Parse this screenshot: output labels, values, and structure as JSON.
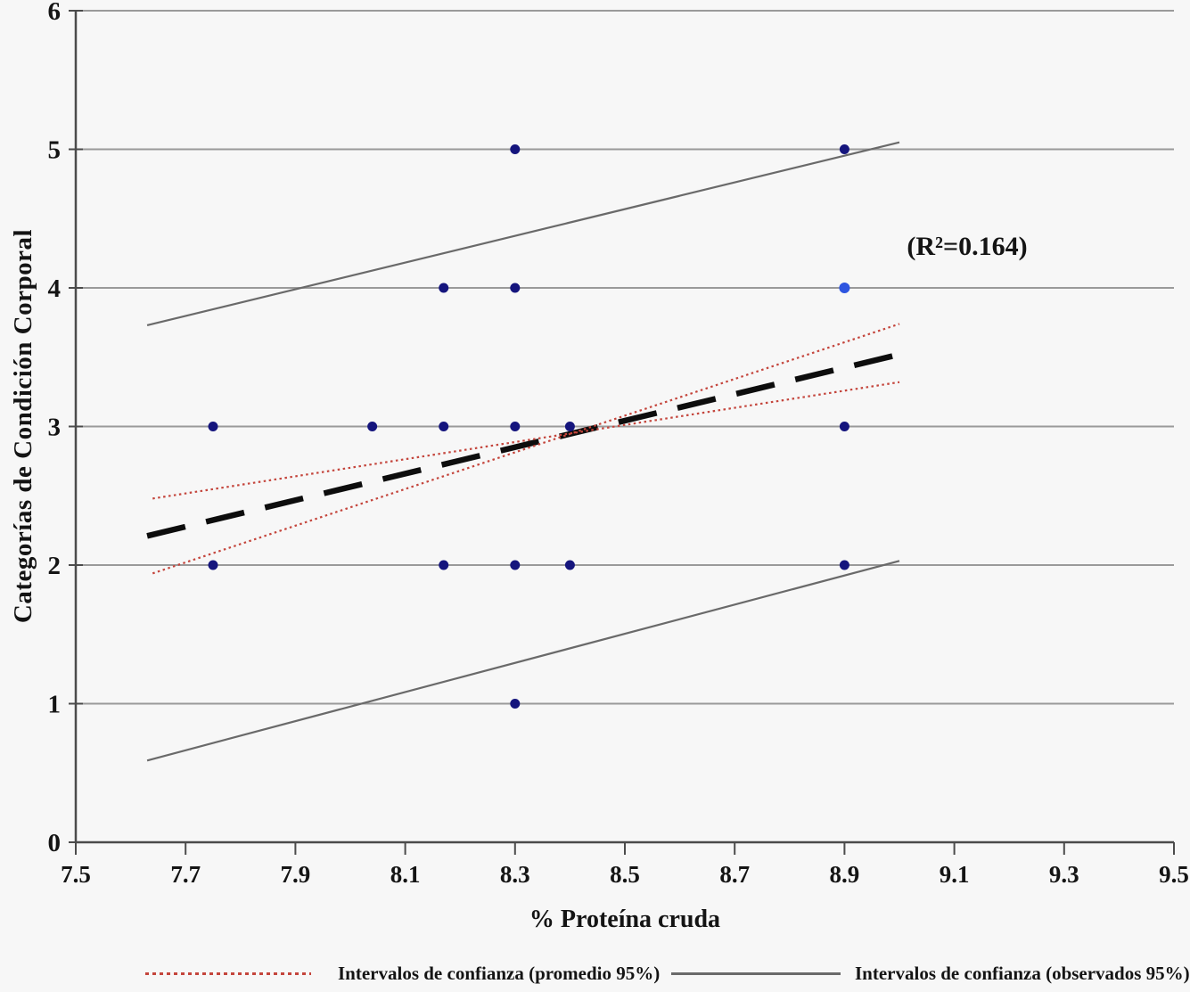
{
  "figure": {
    "background": "#f7f7f7"
  },
  "chart_data": {
    "type": "scatter",
    "title": "",
    "xlabel": "% Proteína cruda",
    "ylabel": "Categorías de Condición Corporal",
    "annotation": "(R²=0.164)",
    "xlim": [
      7.5,
      9.5
    ],
    "ylim": [
      0,
      6
    ],
    "xticks": [
      "7.5",
      "7.7",
      "7.9",
      "8.1",
      "8.3",
      "8.5",
      "8.7",
      "8.9",
      "9.1",
      "9.3",
      "9.5"
    ],
    "yticks": [
      "0",
      "1",
      "2",
      "3",
      "4",
      "5",
      "6"
    ],
    "grid": "horizontal",
    "grid_color": "#9a9a9a",
    "axis_color": "#4b4b4b",
    "point_color": "#15157d",
    "points": [
      {
        "x": 8.3,
        "y": 5
      },
      {
        "x": 8.9,
        "y": 5
      },
      {
        "x": 8.17,
        "y": 4
      },
      {
        "x": 8.3,
        "y": 4
      },
      {
        "x": 7.75,
        "y": 3
      },
      {
        "x": 8.04,
        "y": 3
      },
      {
        "x": 8.17,
        "y": 3
      },
      {
        "x": 8.3,
        "y": 3
      },
      {
        "x": 8.4,
        "y": 3
      },
      {
        "x": 8.9,
        "y": 3
      },
      {
        "x": 7.75,
        "y": 2
      },
      {
        "x": 8.17,
        "y": 2
      },
      {
        "x": 8.3,
        "y": 2
      },
      {
        "x": 8.4,
        "y": 2
      },
      {
        "x": 8.9,
        "y": 2
      },
      {
        "x": 8.3,
        "y": 1
      }
    ],
    "highlight_point": {
      "x": 8.9,
      "y": 4,
      "color": "#2e55e0"
    },
    "series_lines": [
      {
        "name": "regression-dashed",
        "style": "dashed",
        "color": "#0d0d0d",
        "width": 6.5,
        "x1": 7.63,
        "y1": 2.21,
        "x2": 9.0,
        "y2": 3.52
      },
      {
        "name": "ci-promedio-line-a",
        "style": "dotted",
        "color": "#c4453c",
        "width": 2.2,
        "x1": 7.64,
        "y1": 2.48,
        "x2": 9.0,
        "y2": 3.32
      },
      {
        "name": "ci-promedio-line-b",
        "style": "dotted",
        "color": "#c4453c",
        "width": 2.2,
        "x1": 7.64,
        "y1": 1.94,
        "x2": 9.0,
        "y2": 3.74
      },
      {
        "name": "ci-observados-superior",
        "style": "solid",
        "color": "#6a6a6a",
        "width": 2.2,
        "x1": 7.63,
        "y1": 3.73,
        "x2": 9.0,
        "y2": 5.05
      },
      {
        "name": "ci-observados-inferior",
        "style": "solid",
        "color": "#6a6a6a",
        "width": 2.2,
        "x1": 7.63,
        "y1": 0.59,
        "x2": 9.0,
        "y2": 2.03
      }
    ],
    "legend": [
      {
        "label": "Intervalos de confianza (promedio 95%)",
        "style": "dotted",
        "color": "#c4453c"
      },
      {
        "label": "Intervalos de confianza (observados 95%)",
        "style": "solid",
        "color": "#6a6a6a"
      }
    ],
    "legend_position": "bottom"
  }
}
